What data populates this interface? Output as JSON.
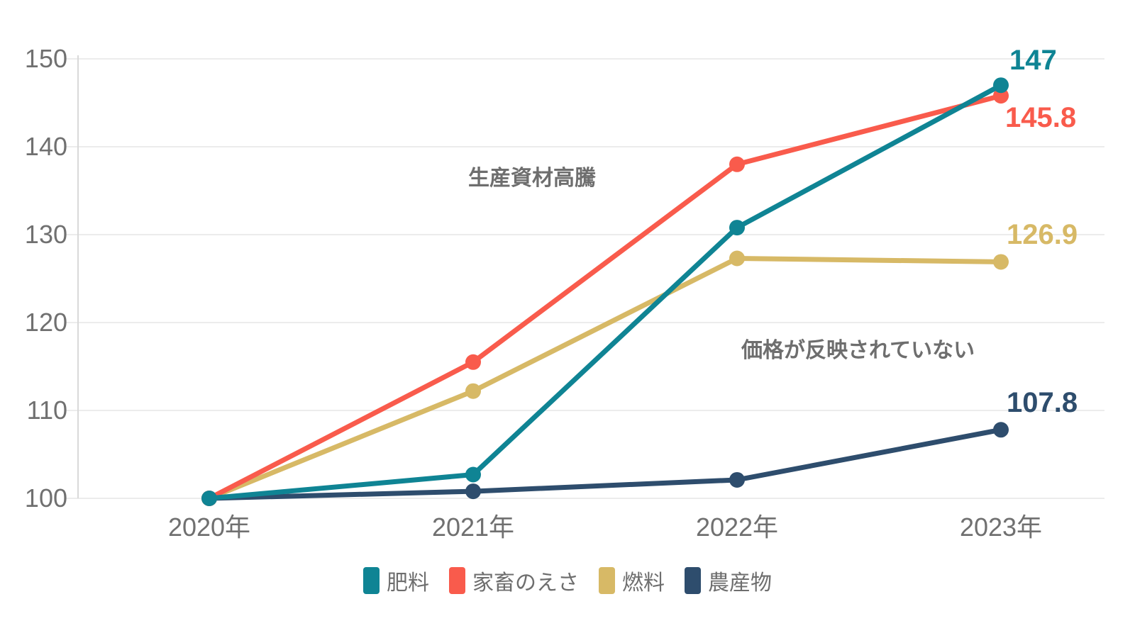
{
  "chart_data": {
    "type": "line",
    "categories": [
      "2020年",
      "2021年",
      "2022年",
      "2023年"
    ],
    "series": [
      {
        "name": "肥料",
        "color": "#0f8494",
        "values": [
          100,
          102.7,
          130.8,
          147
        ],
        "end_label": "147"
      },
      {
        "name": "家畜のえさ",
        "color": "#f95b4c",
        "values": [
          100,
          115.5,
          138.0,
          145.8
        ],
        "end_label": "145.8"
      },
      {
        "name": "燃料",
        "color": "#d7b966",
        "values": [
          100,
          112.2,
          127.3,
          126.9
        ],
        "end_label": "126.9"
      },
      {
        "name": "農産物",
        "color": "#2e4d6d",
        "values": [
          100,
          100.8,
          102.1,
          107.8
        ],
        "end_label": "107.8"
      }
    ],
    "ylim": [
      100,
      150
    ],
    "yticks": [
      "100",
      "110",
      "120",
      "130",
      "140",
      "150"
    ],
    "grid": "horizontal",
    "legend_position": "bottom",
    "annotations": [
      {
        "text": "生産資材高騰"
      },
      {
        "text": "価格が反映されていない"
      }
    ]
  },
  "colors": {
    "background": "#ffffff",
    "gridline": "#ececec",
    "axis_line": "#d9d9d9",
    "tick_text": "#707070",
    "annotation_text": "#6e6e6e",
    "legend_text": "#6e6e6e"
  }
}
